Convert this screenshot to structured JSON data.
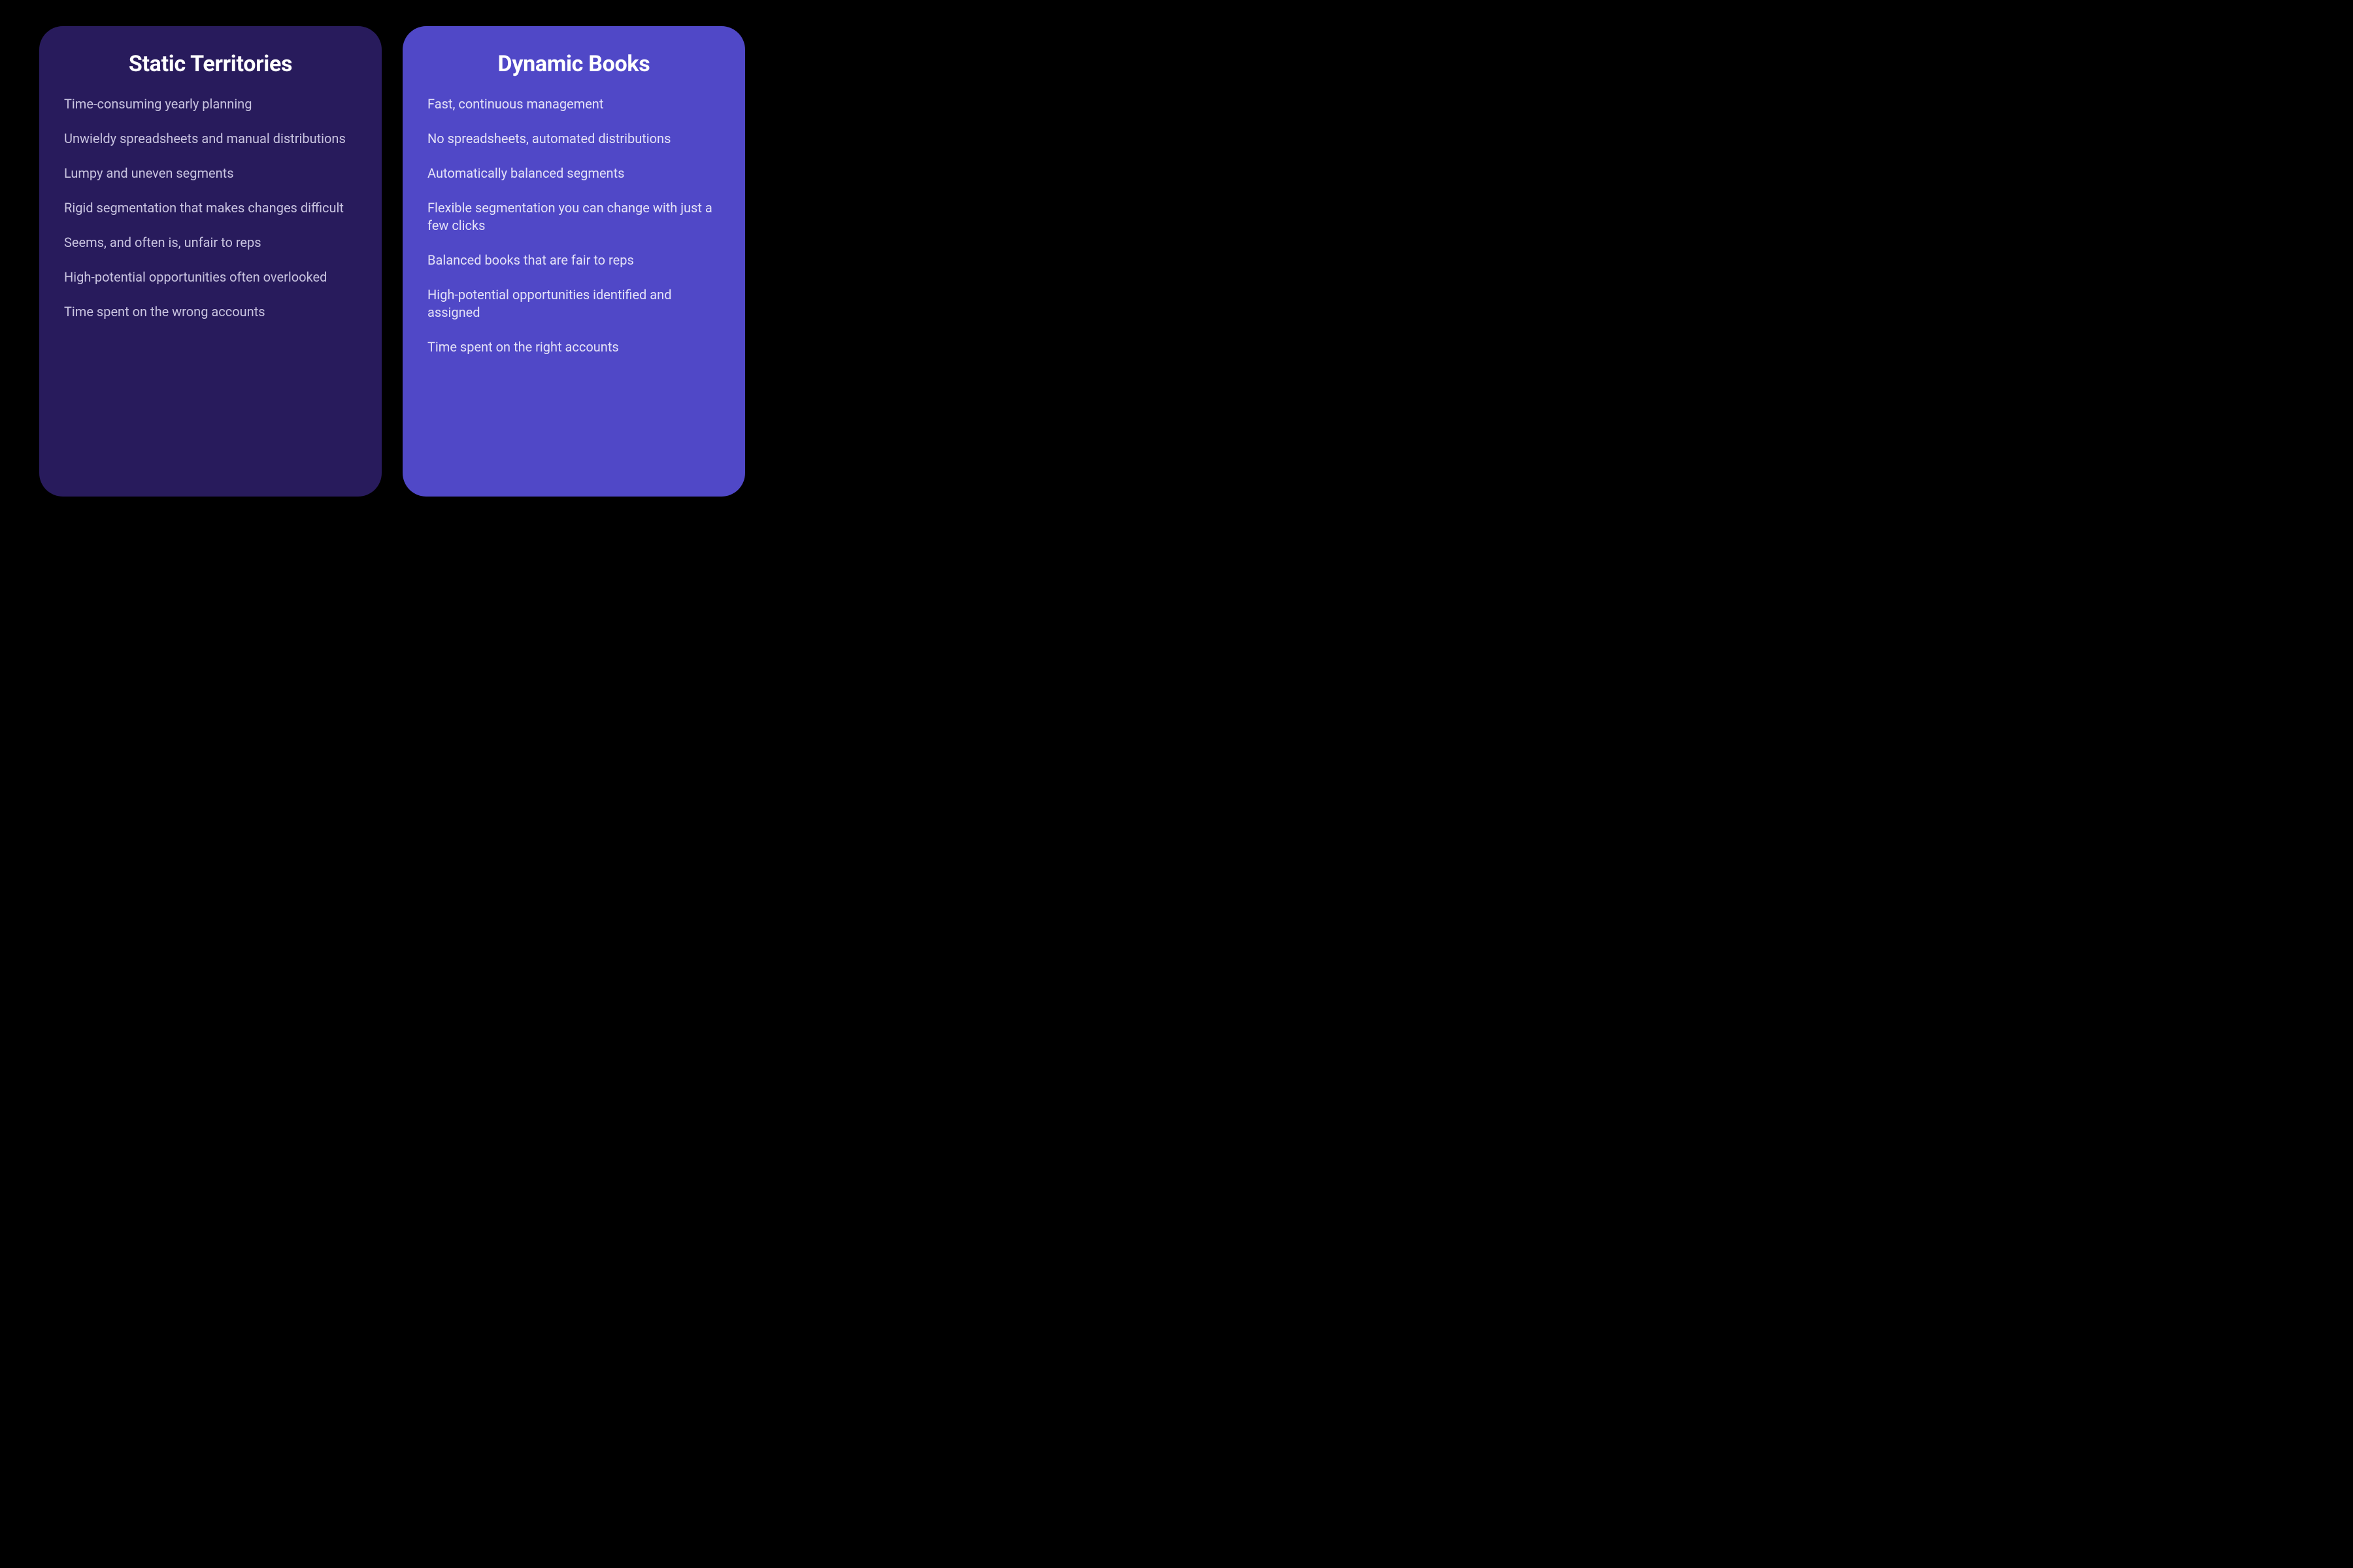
{
  "layout": {
    "background_color": "#000000",
    "card_border_radius": 36,
    "gap": 32
  },
  "left_card": {
    "title": "Static Territories",
    "background_color": "#281B5C",
    "title_color": "#FFFFFF",
    "title_fontsize": 34,
    "title_weight": 700,
    "item_color": "#C9C4E0",
    "item_fontsize": 20,
    "items": [
      "Time-consuming yearly planning",
      "Unwieldy spreadsheets and manual distributions",
      "Lumpy and uneven segments",
      "Rigid segmentation that makes changes difficult",
      "Seems, and often is, unfair to reps",
      "High-potential opportunities often overlooked",
      "Time spent on the wrong accounts"
    ]
  },
  "right_card": {
    "title": "Dynamic Books",
    "background_color": "#5048C7",
    "title_color": "#FFFFFF",
    "title_fontsize": 34,
    "title_weight": 700,
    "item_color": "#E4E2F7",
    "item_fontsize": 20,
    "items": [
      "Fast, continuous management",
      "No spreadsheets, automated distributions",
      "Automatically balanced segments",
      "Flexible segmentation you can change with just a few clicks",
      "Balanced books that are fair to reps",
      "High-potential opportunities identified and assigned",
      "Time spent on the right accounts"
    ]
  }
}
